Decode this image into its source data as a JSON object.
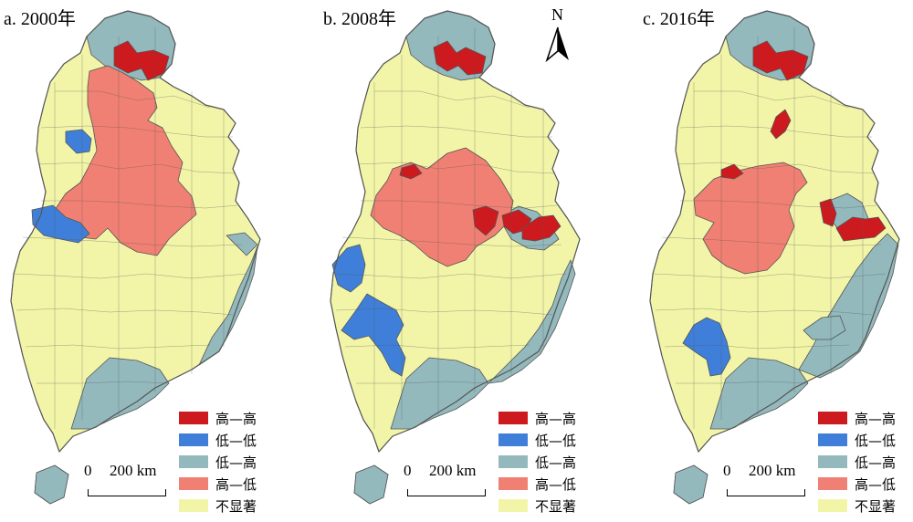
{
  "panels": [
    {
      "title": "a. 2000年"
    },
    {
      "title": "b. 2008年"
    },
    {
      "title": "c. 2016年"
    }
  ],
  "legend": [
    {
      "label": "高—高",
      "color": "#cc1a1f"
    },
    {
      "label": "低—低",
      "color": "#3f7fd9"
    },
    {
      "label": "低—高",
      "color": "#93b9bd"
    },
    {
      "label": "高—低",
      "color": "#f08073"
    },
    {
      "label": "不显著",
      "color": "#f2f5a7"
    }
  ],
  "scale": {
    "zero": "0",
    "distance": "200 km"
  },
  "north_label": "N",
  "region_outline_color": "#555555"
}
